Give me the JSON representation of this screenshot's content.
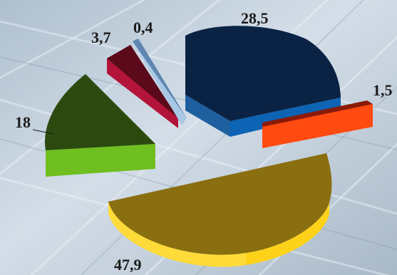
{
  "chart_data": {
    "type": "pie",
    "style": "3d-exploded",
    "slices": [
      {
        "label": "28,5",
        "value": 28.5,
        "top_color": "#0a2344",
        "side_color": "#0d63b4"
      },
      {
        "label": "1,5",
        "value": 1.5,
        "top_color": "#8a1a08",
        "side_color": "#ff4a10"
      },
      {
        "label": "47,9",
        "value": 47.9,
        "top_color": "#8a6f10",
        "side_color": "#ffd21a"
      },
      {
        "label": "18",
        "value": 18,
        "top_color": "#2c4a0f",
        "side_color": "#6fbf20"
      },
      {
        "label": "3,7",
        "value": 3.7,
        "top_color": "#5a0a1a",
        "side_color": "#b3143a"
      },
      {
        "label": "0,4",
        "value": 0.4,
        "top_color": "#5f86b0",
        "side_color": "#a9c8e6"
      }
    ]
  }
}
